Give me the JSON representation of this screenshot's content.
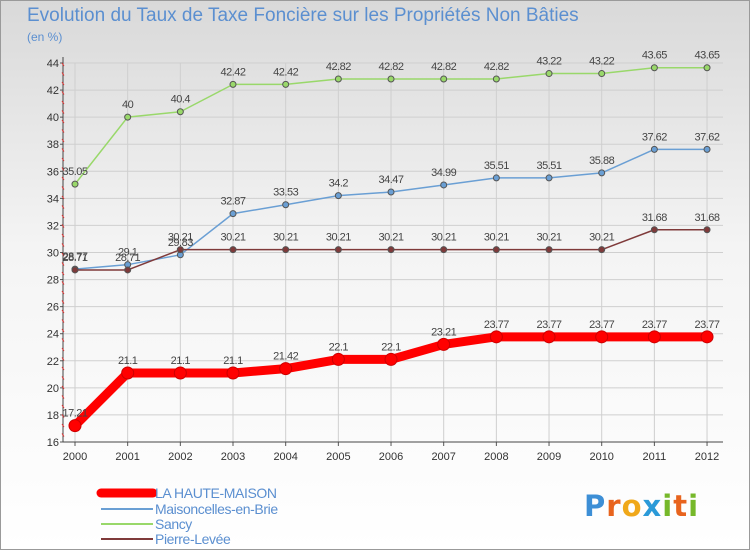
{
  "header": {
    "title": "Evolution du Taux de Taxe Foncière sur les Propriétés Non Bâties",
    "subtitle": "(en %)"
  },
  "logo": {
    "letters": [
      "P",
      "r",
      "o",
      "x",
      "i",
      "t",
      "i"
    ],
    "colors": [
      "#3d8fd6",
      "#e8641e",
      "#f0a81a",
      "#2b9ad8",
      "#76b82a",
      "#e8641e",
      "#76b82a"
    ]
  },
  "chart_data": {
    "type": "line",
    "title": "Evolution du Taux de Taxe Foncière sur les Propriétés Non Bâties",
    "ylabel": "(en %)",
    "x": [
      "2000",
      "2001",
      "2002",
      "2003",
      "2004",
      "2005",
      "2006",
      "2007",
      "2008",
      "2009",
      "2010",
      "2011",
      "2012"
    ],
    "ylim": [
      16,
      44
    ],
    "yticks": [
      16,
      18,
      20,
      22,
      24,
      26,
      28,
      30,
      32,
      34,
      36,
      38,
      40,
      42,
      44
    ],
    "grid": true,
    "legend": "bottom-left",
    "series": [
      {
        "name": "LA HAUTE-MAISON",
        "color": "#ff0000",
        "values": [
          17.21,
          21.1,
          21.1,
          21.1,
          21.42,
          22.1,
          22.1,
          23.21,
          23.77,
          23.77,
          23.77,
          23.77,
          23.77
        ],
        "labels": [
          "17.21",
          "21.1",
          "21.1",
          "21.1",
          "21.42",
          "22.1",
          "22.1",
          "23.21",
          "23.77",
          "23.77",
          "23.77",
          "23.77",
          "23.77"
        ]
      },
      {
        "name": "Maisoncelles-en-Brie",
        "color": "#6a9fd4",
        "values": [
          28.77,
          29.1,
          29.83,
          32.87,
          33.53,
          34.2,
          34.47,
          34.99,
          35.51,
          35.51,
          35.88,
          37.62,
          37.62
        ],
        "labels": [
          "28.77",
          "29.1",
          "29.83",
          "32.87",
          "33.53",
          "34.2",
          "34.47",
          "34.99",
          "35.51",
          "35.51",
          "35.88",
          "37.62",
          "37.62"
        ]
      },
      {
        "name": "Sancy",
        "color": "#99d86a",
        "values": [
          35.05,
          40,
          40.4,
          42.42,
          42.42,
          42.82,
          42.82,
          42.82,
          42.82,
          43.22,
          43.22,
          43.65,
          43.65
        ],
        "labels": [
          "35.05",
          "40",
          "40.4",
          "42.42",
          "42.42",
          "42.82",
          "42.82",
          "42.82",
          "42.82",
          "43.22",
          "43.22",
          "43.65",
          "43.65"
        ]
      },
      {
        "name": "Pierre-Levée",
        "color": "#7f3a3a",
        "values": [
          28.71,
          28.71,
          30.21,
          30.21,
          30.21,
          30.21,
          30.21,
          30.21,
          30.21,
          30.21,
          30.21,
          31.68,
          31.68
        ],
        "labels": [
          "28.71",
          "28.71",
          "30.21",
          "30.21",
          "30.21",
          "30.21",
          "30.21",
          "30.21",
          "30.21",
          "30.21",
          "30.21",
          "31.68",
          "31.68"
        ]
      }
    ]
  }
}
